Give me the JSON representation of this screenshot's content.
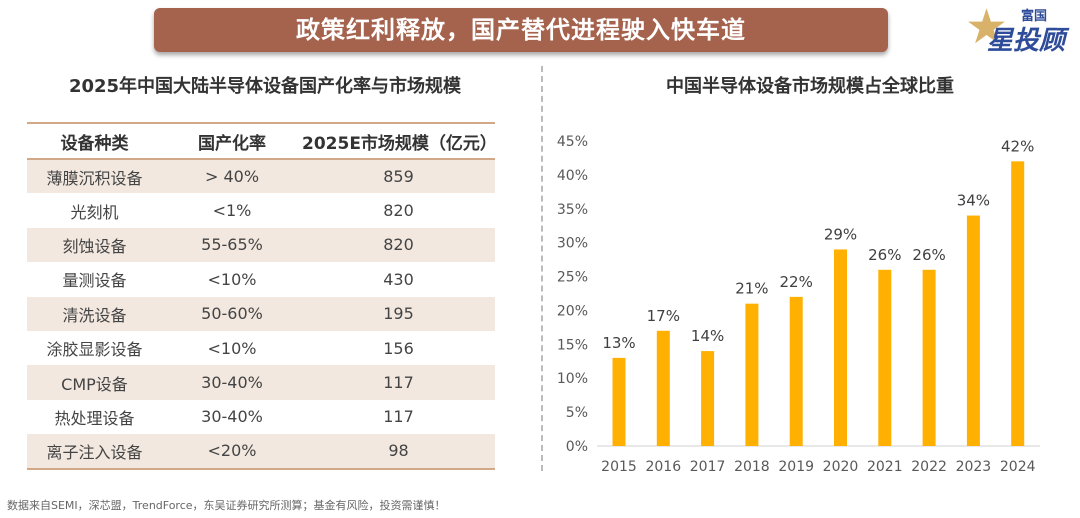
{
  "header": {
    "banner_title": "政策红利释放，国产替代进程驶入快车道",
    "logo_text": "富国星投顾"
  },
  "table": {
    "title": "2025年中国大陆半导体设备国产化率与市场规模",
    "columns": [
      "设备种类",
      "国产化率",
      "2025E市场规模（亿元）"
    ],
    "rows": [
      [
        "薄膜沉积设备",
        "> 40%",
        "859"
      ],
      [
        "光刻机",
        "<1%",
        "820"
      ],
      [
        "刻蚀设备",
        "55-65%",
        "820"
      ],
      [
        "量测设备",
        "<10%",
        "430"
      ],
      [
        "清洗设备",
        "50-60%",
        "195"
      ],
      [
        "涂胶显影设备",
        "<10%",
        "156"
      ],
      [
        "CMP设备",
        "30-40%",
        "117"
      ],
      [
        "热处理设备",
        "30-40%",
        "117"
      ],
      [
        "离子注入设备",
        "<20%",
        "98"
      ]
    ]
  },
  "chart_data": {
    "type": "bar",
    "title": "中国半导体设备市场规模占全球比重",
    "categories": [
      "2015",
      "2016",
      "2017",
      "2018",
      "2019",
      "2020",
      "2021",
      "2022",
      "2023",
      "2024"
    ],
    "values": [
      13,
      17,
      14,
      21,
      22,
      29,
      26,
      26,
      34,
      42
    ],
    "data_labels": [
      "13%",
      "17%",
      "14%",
      "21%",
      "22%",
      "29%",
      "26%",
      "26%",
      "34%",
      "42%"
    ],
    "ylim": [
      0,
      45
    ],
    "yticks": [
      "0%",
      "5%",
      "10%",
      "15%",
      "20%",
      "25%",
      "30%",
      "35%",
      "40%",
      "45%"
    ],
    "grid": false,
    "bar_color": "#FFB000"
  },
  "footer": "数据来自SEMI，深芯盟，TrendForce，东吴证券研究所测算；基金有风险，投资需谨慎！"
}
